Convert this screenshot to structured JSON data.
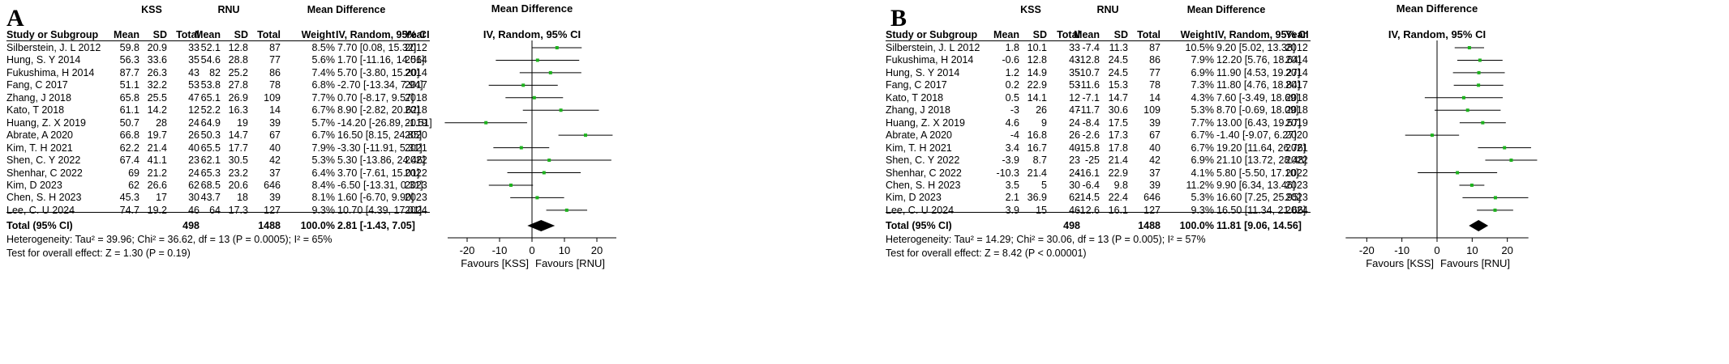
{
  "panels": [
    {
      "id": "A",
      "letter": "A",
      "headers": {
        "group1": "KSS",
        "group2": "RNU",
        "mean_diff_table": "Mean Difference",
        "mean_diff_method": "IV, Random, 95% CI",
        "mean_diff_plot": "Mean Difference",
        "mean_diff_plot_method": "IV, Random, 95% CI",
        "study": "Study or Subgroup",
        "mean": "Mean",
        "sd": "SD",
        "total": "Total",
        "weight": "Weight",
        "year": "Year"
      },
      "studies": [
        {
          "name": "Silberstein, J. L 2012",
          "m1": "59.8",
          "sd1": "20.9",
          "n1": "33",
          "m2": "52.1",
          "sd2": "12.8",
          "n2": "87",
          "weight": "8.5%",
          "ci": "7.70 [0.08, 15.32]",
          "year": "2012",
          "md": 7.7,
          "lo": 0.08,
          "hi": 15.32
        },
        {
          "name": "Hung, S. Y 2014",
          "m1": "56.3",
          "sd1": "33.6",
          "n1": "35",
          "m2": "54.6",
          "sd2": "28.8",
          "n2": "77",
          "weight": "5.6%",
          "ci": "1.70 [-11.16, 14.56]",
          "year": "2014",
          "md": 1.7,
          "lo": -11.16,
          "hi": 14.56
        },
        {
          "name": "Fukushima, H 2014",
          "m1": "87.7",
          "sd1": "26.3",
          "n1": "43",
          "m2": "82",
          "sd2": "25.2",
          "n2": "86",
          "weight": "7.4%",
          "ci": "5.70 [-3.80, 15.20]",
          "year": "2014",
          "md": 5.7,
          "lo": -3.8,
          "hi": 15.2
        },
        {
          "name": "Fang, C 2017",
          "m1": "51.1",
          "sd1": "32.2",
          "n1": "53",
          "m2": "53.8",
          "sd2": "27.8",
          "n2": "78",
          "weight": "6.8%",
          "ci": "-2.70 [-13.34, 7.94]",
          "year": "2017",
          "md": -2.7,
          "lo": -13.34,
          "hi": 7.94
        },
        {
          "name": "Zhang, J 2018",
          "m1": "65.8",
          "sd1": "25.5",
          "n1": "47",
          "m2": "65.1",
          "sd2": "26.9",
          "n2": "109",
          "weight": "7.7%",
          "ci": "0.70 [-8.17, 9.57]",
          "year": "2018",
          "md": 0.7,
          "lo": -8.17,
          "hi": 9.57
        },
        {
          "name": "Kato, T 2018",
          "m1": "61.1",
          "sd1": "14.2",
          "n1": "12",
          "m2": "52.2",
          "sd2": "16.3",
          "n2": "14",
          "weight": "6.7%",
          "ci": "8.90 [-2.82, 20.62]",
          "year": "2018",
          "md": 8.9,
          "lo": -2.82,
          "hi": 20.62
        },
        {
          "name": "Huang, Z. X 2019",
          "m1": "50.7",
          "sd1": "28",
          "n1": "24",
          "m2": "64.9",
          "sd2": "19",
          "n2": "39",
          "weight": "5.7%",
          "ci": "-14.20 [-26.89, -1.51]",
          "year": "2019",
          "md": -14.2,
          "lo": -26.89,
          "hi": -1.51
        },
        {
          "name": "Abrate, A 2020",
          "m1": "66.8",
          "sd1": "19.7",
          "n1": "26",
          "m2": "50.3",
          "sd2": "14.7",
          "n2": "67",
          "weight": "6.7%",
          "ci": "16.50 [8.15, 24.85]",
          "year": "2020",
          "md": 16.5,
          "lo": 8.15,
          "hi": 24.85
        },
        {
          "name": "Kim, T. H 2021",
          "m1": "62.2",
          "sd1": "21.4",
          "n1": "40",
          "m2": "65.5",
          "sd2": "17.7",
          "n2": "40",
          "weight": "7.9%",
          "ci": "-3.30 [-11.91, 5.31]",
          "year": "2021",
          "md": -3.3,
          "lo": -11.91,
          "hi": 5.31
        },
        {
          "name": "Shen, C. Y 2022",
          "m1": "67.4",
          "sd1": "41.1",
          "n1": "23",
          "m2": "62.1",
          "sd2": "30.5",
          "n2": "42",
          "weight": "5.3%",
          "ci": "5.30 [-13.86, 24.46]",
          "year": "2022",
          "md": 5.3,
          "lo": -13.86,
          "hi": 24.46
        },
        {
          "name": "Shenhar, C 2022",
          "m1": "69",
          "sd1": "21.2",
          "n1": "24",
          "m2": "65.3",
          "sd2": "23.2",
          "n2": "37",
          "weight": "6.4%",
          "ci": "3.70 [-7.61, 15.01]",
          "year": "2022",
          "md": 3.7,
          "lo": -7.61,
          "hi": 15.01
        },
        {
          "name": "Kim, D 2023",
          "m1": "62",
          "sd1": "26.6",
          "n1": "62",
          "m2": "68.5",
          "sd2": "20.6",
          "n2": "646",
          "weight": "8.4%",
          "ci": "-6.50 [-13.31, 0.31]",
          "year": "2023",
          "md": -6.5,
          "lo": -13.31,
          "hi": 0.31
        },
        {
          "name": "Chen, S. H 2023",
          "m1": "45.3",
          "sd1": "17",
          "n1": "30",
          "m2": "43.7",
          "sd2": "18",
          "n2": "39",
          "weight": "8.1%",
          "ci": "1.60 [-6.70, 9.90]",
          "year": "2023",
          "md": 1.6,
          "lo": -6.7,
          "hi": 9.9
        },
        {
          "name": "Lee, C. U 2024",
          "m1": "74.7",
          "sd1": "19.2",
          "n1": "46",
          "m2": "64",
          "sd2": "17.3",
          "n2": "127",
          "weight": "9.3%",
          "ci": "10.70 [4.39, 17.01]",
          "year": "2024",
          "md": 10.7,
          "lo": 4.39,
          "hi": 17.01
        }
      ],
      "total": {
        "label": "Total (95% CI)",
        "n1": "498",
        "n2": "1488",
        "weight": "100.0%",
        "ci": "2.81 [-1.43, 7.05]",
        "md": 2.81,
        "lo": -1.43,
        "hi": 7.05
      },
      "heterogeneity": "Heterogeneity: Tau² = 39.96; Chi² = 36.62, df = 13 (P = 0.0005); I² = 65%",
      "overall_effect": "Test for overall effect: Z = 1.30 (P = 0.19)",
      "favours_left": "Favours [KSS]",
      "favours_right": "Favours [RNU]"
    },
    {
      "id": "B",
      "letter": "B",
      "headers": {
        "group1": "KSS",
        "group2": "RNU",
        "mean_diff_table": "Mean Difference",
        "mean_diff_method": "IV, Random, 95% CI",
        "mean_diff_plot": "Mean Difference",
        "mean_diff_plot_method": "IV, Random, 95% CI",
        "study": "Study or Subgroup",
        "mean": "Mean",
        "sd": "SD",
        "total": "Total",
        "weight": "Weight",
        "year": "Year"
      },
      "studies": [
        {
          "name": "Silberstein, J. L 2012",
          "m1": "1.8",
          "sd1": "10.1",
          "n1": "33",
          "m2": "-7.4",
          "sd2": "11.3",
          "n2": "87",
          "weight": "10.5%",
          "ci": "9.20 [5.02, 13.38]",
          "year": "2012",
          "md": 9.2,
          "lo": 5.02,
          "hi": 13.38
        },
        {
          "name": "Fukushima, H 2014",
          "m1": "-0.6",
          "sd1": "12.8",
          "n1": "43",
          "m2": "-12.8",
          "sd2": "24.5",
          "n2": "86",
          "weight": "7.9%",
          "ci": "12.20 [5.76, 18.64]",
          "year": "2014",
          "md": 12.2,
          "lo": 5.76,
          "hi": 18.64
        },
        {
          "name": "Hung, S. Y 2014",
          "m1": "1.2",
          "sd1": "14.9",
          "n1": "35",
          "m2": "-10.7",
          "sd2": "24.5",
          "n2": "77",
          "weight": "6.9%",
          "ci": "11.90 [4.53, 19.27]",
          "year": "2014",
          "md": 11.9,
          "lo": 4.53,
          "hi": 19.27
        },
        {
          "name": "Fang, C 2017",
          "m1": "0.2",
          "sd1": "22.9",
          "n1": "53",
          "m2": "-11.6",
          "sd2": "15.3",
          "n2": "78",
          "weight": "7.3%",
          "ci": "11.80 [4.76, 18.84]",
          "year": "2017",
          "md": 11.8,
          "lo": 4.76,
          "hi": 18.84
        },
        {
          "name": "Kato, T 2018",
          "m1": "0.5",
          "sd1": "14.1",
          "n1": "12",
          "m2": "-7.1",
          "sd2": "14.7",
          "n2": "14",
          "weight": "4.3%",
          "ci": "7.60 [-3.49, 18.69]",
          "year": "2018",
          "md": 7.6,
          "lo": -3.49,
          "hi": 18.69
        },
        {
          "name": "Zhang, J 2018",
          "m1": "-3",
          "sd1": "26",
          "n1": "47",
          "m2": "-11.7",
          "sd2": "30.6",
          "n2": "109",
          "weight": "5.3%",
          "ci": "8.70 [-0.69, 18.09]",
          "year": "2018",
          "md": 8.7,
          "lo": -0.69,
          "hi": 18.09
        },
        {
          "name": "Huang, Z. X 2019",
          "m1": "4.6",
          "sd1": "9",
          "n1": "24",
          "m2": "-8.4",
          "sd2": "17.5",
          "n2": "39",
          "weight": "7.7%",
          "ci": "13.00 [6.43, 19.57]",
          "year": "2019",
          "md": 13.0,
          "lo": 6.43,
          "hi": 19.57
        },
        {
          "name": "Abrate, A 2020",
          "m1": "-4",
          "sd1": "16.8",
          "n1": "26",
          "m2": "-2.6",
          "sd2": "17.3",
          "n2": "67",
          "weight": "6.7%",
          "ci": "-1.40 [-9.07, 6.27]",
          "year": "2020",
          "md": -1.4,
          "lo": -9.07,
          "hi": 6.27
        },
        {
          "name": "Kim, T. H 2021",
          "m1": "3.4",
          "sd1": "16.7",
          "n1": "40",
          "m2": "-15.8",
          "sd2": "17.8",
          "n2": "40",
          "weight": "6.7%",
          "ci": "19.20 [11.64, 26.76]",
          "year": "2021",
          "md": 19.2,
          "lo": 11.64,
          "hi": 26.76
        },
        {
          "name": "Shen, C. Y 2022",
          "m1": "-3.9",
          "sd1": "8.7",
          "n1": "23",
          "m2": "-25",
          "sd2": "21.4",
          "n2": "42",
          "weight": "6.9%",
          "ci": "21.10 [13.72, 28.48]",
          "year": "2022",
          "md": 21.1,
          "lo": 13.72,
          "hi": 28.48
        },
        {
          "name": "Shenhar, C 2022",
          "m1": "-10.3",
          "sd1": "21.4",
          "n1": "24",
          "m2": "-16.1",
          "sd2": "22.9",
          "n2": "37",
          "weight": "4.1%",
          "ci": "5.80 [-5.50, 17.10]",
          "year": "2022",
          "md": 5.8,
          "lo": -5.5,
          "hi": 17.1
        },
        {
          "name": "Chen, S. H 2023",
          "m1": "3.5",
          "sd1": "5",
          "n1": "30",
          "m2": "-6.4",
          "sd2": "9.8",
          "n2": "39",
          "weight": "11.2%",
          "ci": "9.90 [6.34, 13.46]",
          "year": "2023",
          "md": 9.9,
          "lo": 6.34,
          "hi": 13.46
        },
        {
          "name": "Kim, D 2023",
          "m1": "2.1",
          "sd1": "36.9",
          "n1": "62",
          "m2": "-14.5",
          "sd2": "22.4",
          "n2": "646",
          "weight": "5.3%",
          "ci": "16.60 [7.25, 25.95]",
          "year": "2023",
          "md": 16.6,
          "lo": 7.25,
          "hi": 25.95
        },
        {
          "name": "Lee, C. U 2024",
          "m1": "3.9",
          "sd1": "15",
          "n1": "46",
          "m2": "-12.6",
          "sd2": "16.1",
          "n2": "127",
          "weight": "9.3%",
          "ci": "16.50 [11.34, 21.66]",
          "year": "2024",
          "md": 16.5,
          "lo": 11.34,
          "hi": 21.66
        }
      ],
      "total": {
        "label": "Total (95% CI)",
        "n1": "498",
        "n2": "1488",
        "weight": "100.0%",
        "ci": "11.81 [9.06, 14.56]",
        "md": 11.81,
        "lo": 9.06,
        "hi": 14.56
      },
      "heterogeneity": "Heterogeneity: Tau² = 14.29; Chi² = 30.06, df = 13 (P = 0.005); I² = 57%",
      "overall_effect": "Test for overall effect: Z = 8.42 (P < 0.00001)",
      "favours_left": "Favours [KSS]",
      "favours_right": "Favours [RNU]"
    }
  ],
  "chart_data": [
    {
      "type": "forest",
      "panel": "A",
      "xlim": [
        -30,
        30
      ],
      "ticks": [
        "-20",
        "-10",
        "0",
        "10",
        "20"
      ],
      "tick_values": [
        -20,
        -10,
        0,
        10,
        20
      ],
      "xlabel_left": "Favours [KSS]",
      "xlabel_right": "Favours [RNU]",
      "title": "Mean Difference IV, Random, 95% CI",
      "point_color": "#1db21d",
      "line_color": "#000000",
      "diamond_color": "#000000"
    },
    {
      "type": "forest",
      "panel": "B",
      "xlim": [
        -30,
        30
      ],
      "ticks": [
        "-20",
        "-10",
        "0",
        "10",
        "20"
      ],
      "tick_values": [
        -20,
        -10,
        0,
        10,
        20
      ],
      "xlabel_left": "Favours [KSS]",
      "xlabel_right": "Favours [RNU]",
      "title": "Mean Difference IV, Random, 95% CI",
      "point_color": "#1db21d",
      "line_color": "#000000",
      "diamond_color": "#000000"
    }
  ]
}
